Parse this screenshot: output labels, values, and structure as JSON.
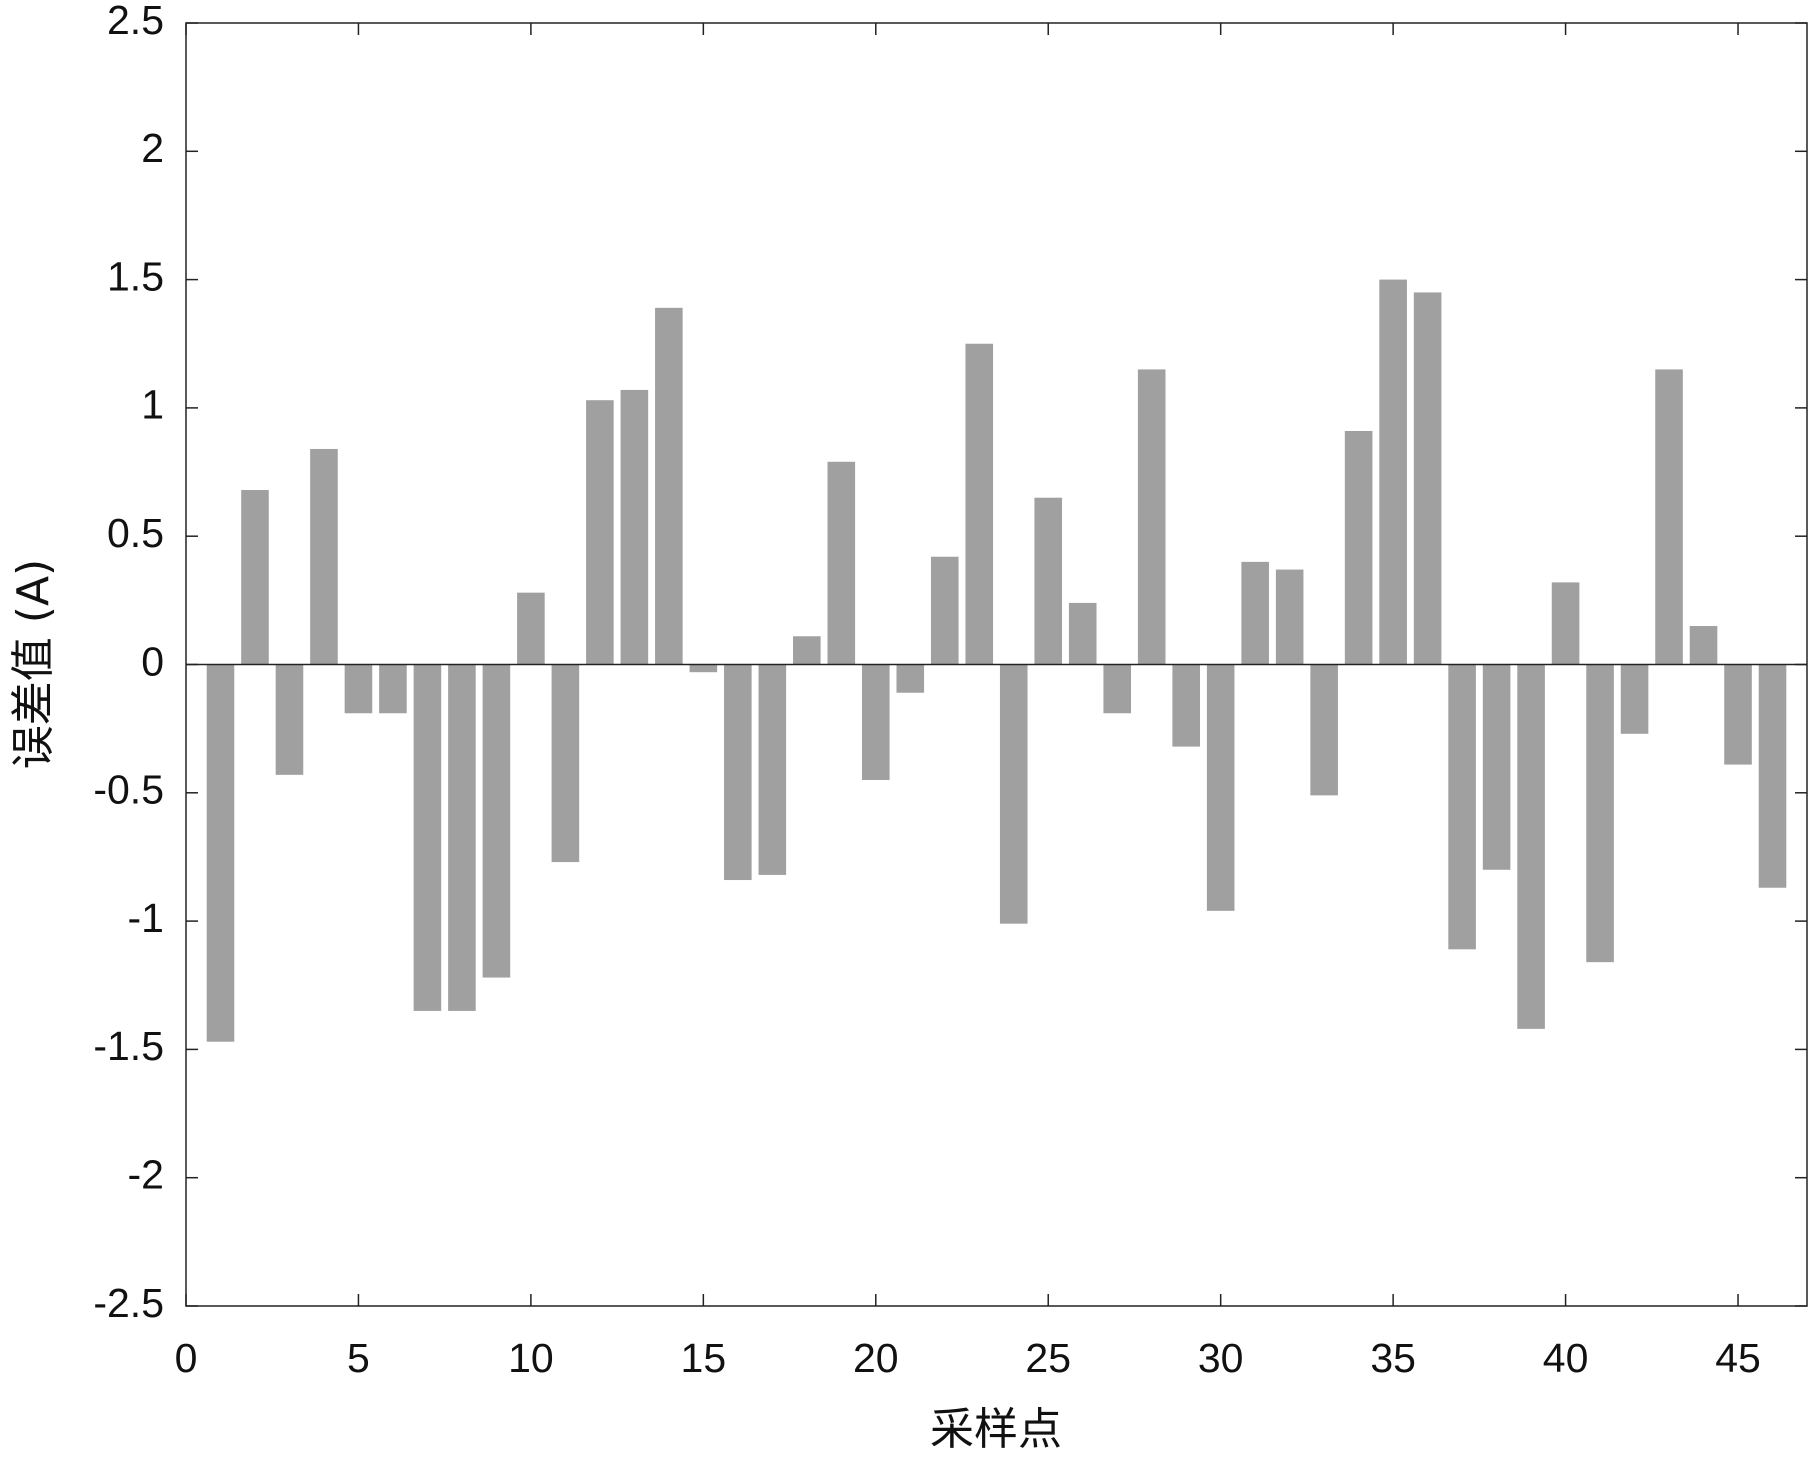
{
  "chart_data": {
    "type": "bar",
    "x_label": "采样点",
    "y_label": "误差值 (A)",
    "x": [
      1,
      2,
      3,
      4,
      5,
      6,
      7,
      8,
      9,
      10,
      11,
      12,
      13,
      14,
      15,
      16,
      17,
      18,
      19,
      20,
      21,
      22,
      23,
      24,
      25,
      26,
      27,
      28,
      29,
      30,
      31,
      32,
      33,
      34,
      35,
      36,
      37,
      38,
      39,
      40,
      41,
      42,
      43,
      44,
      45,
      46
    ],
    "values": [
      -1.47,
      0.68,
      -0.43,
      0.84,
      -0.19,
      -0.19,
      -1.35,
      -1.35,
      -1.22,
      0.28,
      -0.77,
      1.03,
      1.07,
      1.39,
      -0.03,
      -0.84,
      -0.82,
      0.11,
      0.79,
      -0.45,
      -0.11,
      0.42,
      1.25,
      -1.01,
      0.65,
      0.24,
      -0.19,
      1.15,
      -0.32,
      -0.96,
      0.4,
      0.37,
      -0.51,
      0.91,
      1.5,
      1.45,
      -1.11,
      -0.8,
      -1.42,
      0.32,
      -1.16,
      -0.27,
      1.15,
      0.15,
      -0.39,
      -0.87
    ],
    "color": "#a0a0a0",
    "xlim": [
      0,
      47
    ],
    "xticks": [
      0,
      5,
      10,
      15,
      20,
      25,
      30,
      35,
      40,
      45
    ],
    "ylim": [
      -2.5,
      2.5
    ],
    "yticks": [
      -2.5,
      -2,
      -1.5,
      -1,
      -0.5,
      0,
      0.5,
      1,
      1.5,
      2,
      2.5
    ],
    "grid": false
  }
}
